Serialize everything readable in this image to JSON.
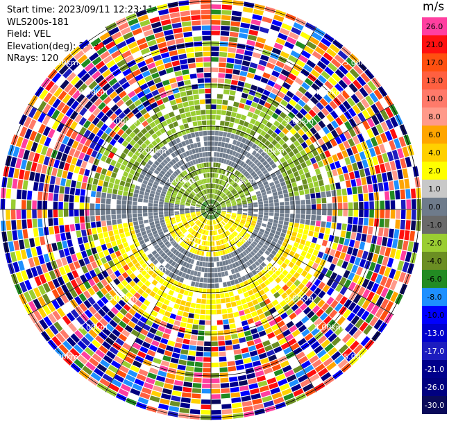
{
  "header": {
    "start_time": "Start time: 2023/09/11 12:23:11",
    "instrument": "WLS200s-181",
    "field": "Field: VEL",
    "elevation": "Elevation(deg): 35.30",
    "nrays": "NRays: 120"
  },
  "chart_data": {
    "type": "heatmap",
    "projection": "polar-ppi",
    "field": "VEL",
    "units": "m/s",
    "n_rays": 120,
    "range_rings_km": [
      1,
      2,
      3,
      4,
      5
    ],
    "ring_labels": [
      "1.00km",
      "2.00km",
      "3.00km",
      "4.00km",
      "5.00km"
    ],
    "spoke_count": 12,
    "colorbar": {
      "label": "m/s",
      "tick_labels": [
        "26.0",
        "21.0",
        "17.0",
        "13.0",
        "10.0",
        "8.0",
        "6.0",
        "4.0",
        "2.0",
        "1.0",
        "0.0",
        "-1.0",
        "-2.0",
        "-4.0",
        "-6.0",
        "-8.0",
        "-10.0",
        "-13.0",
        "-17.0",
        "-21.0",
        "-26.0",
        "-30.0"
      ],
      "colors": [
        "#ff3fa0",
        "#ff1010",
        "#ff5010",
        "#ff6040",
        "#ff7a6a",
        "#ff9a8a",
        "#ffa500",
        "#ffd000",
        "#ffff00",
        "#c8c8c8",
        "#6e7b8b",
        "#6a6a6a",
        "#9acd32",
        "#6b8e23",
        "#228b22",
        "#1e90ff",
        "#0000ff",
        "#0000cd",
        "#1c1cbf",
        "#00008b",
        "#000080",
        "#0a0a5a"
      ]
    },
    "near_field": {
      "clear_air_range_km": [
        0.0,
        3.0
      ],
      "approaching_velocity_ms": [
        -2,
        -1
      ],
      "receding_velocity_ms": [
        1,
        2
      ]
    }
  }
}
